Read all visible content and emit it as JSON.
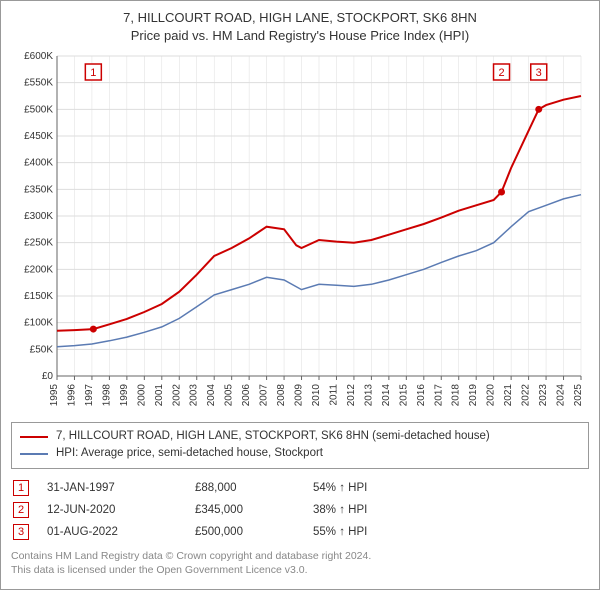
{
  "title_line1": "7, HILLCOURT ROAD, HIGH LANE, STOCKPORT, SK6 8HN",
  "title_line2": "Price paid vs. HM Land Registry's House Price Index (HPI)",
  "chart": {
    "type": "line",
    "background_color": "#ffffff",
    "grid_color": "#dddddd",
    "axis_color": "#666666",
    "xlim": [
      1995,
      2025
    ],
    "ylim": [
      0,
      600000
    ],
    "ytick_step": 50000,
    "ytick_labels": [
      "£0",
      "£50K",
      "£100K",
      "£150K",
      "£200K",
      "£250K",
      "£300K",
      "£350K",
      "£400K",
      "£450K",
      "£500K",
      "£550K",
      "£600K"
    ],
    "xticks": [
      1995,
      1996,
      1997,
      1998,
      1999,
      2000,
      2001,
      2002,
      2003,
      2004,
      2005,
      2006,
      2007,
      2008,
      2009,
      2010,
      2011,
      2012,
      2013,
      2014,
      2015,
      2016,
      2017,
      2018,
      2019,
      2020,
      2021,
      2022,
      2023,
      2024,
      2025
    ],
    "series_property": {
      "color": "#cc0000",
      "line_width": 2,
      "points": [
        [
          1995,
          85000
        ],
        [
          1996,
          86000
        ],
        [
          1997.08,
          88000
        ],
        [
          1998,
          97000
        ],
        [
          1999,
          107000
        ],
        [
          2000,
          120000
        ],
        [
          2001,
          135000
        ],
        [
          2002,
          158000
        ],
        [
          2003,
          190000
        ],
        [
          2004,
          225000
        ],
        [
          2005,
          240000
        ],
        [
          2006,
          258000
        ],
        [
          2007,
          280000
        ],
        [
          2008,
          275000
        ],
        [
          2008.7,
          245000
        ],
        [
          2009,
          240000
        ],
        [
          2010,
          255000
        ],
        [
          2011,
          252000
        ],
        [
          2012,
          250000
        ],
        [
          2013,
          255000
        ],
        [
          2014,
          265000
        ],
        [
          2015,
          275000
        ],
        [
          2016,
          285000
        ],
        [
          2017,
          297000
        ],
        [
          2018,
          310000
        ],
        [
          2019,
          320000
        ],
        [
          2020,
          330000
        ],
        [
          2020.45,
          345000
        ],
        [
          2021,
          390000
        ],
        [
          2022,
          460000
        ],
        [
          2022.58,
          500000
        ],
        [
          2023,
          508000
        ],
        [
          2024,
          518000
        ],
        [
          2025,
          525000
        ]
      ]
    },
    "series_hpi": {
      "color": "#5b7bb3",
      "line_width": 1.5,
      "points": [
        [
          1995,
          55000
        ],
        [
          1996,
          57000
        ],
        [
          1997,
          60000
        ],
        [
          1998,
          66000
        ],
        [
          1999,
          73000
        ],
        [
          2000,
          82000
        ],
        [
          2001,
          92000
        ],
        [
          2002,
          108000
        ],
        [
          2003,
          130000
        ],
        [
          2004,
          152000
        ],
        [
          2005,
          162000
        ],
        [
          2006,
          172000
        ],
        [
          2007,
          185000
        ],
        [
          2008,
          180000
        ],
        [
          2009,
          162000
        ],
        [
          2010,
          172000
        ],
        [
          2011,
          170000
        ],
        [
          2012,
          168000
        ],
        [
          2013,
          172000
        ],
        [
          2014,
          180000
        ],
        [
          2015,
          190000
        ],
        [
          2016,
          200000
        ],
        [
          2017,
          213000
        ],
        [
          2018,
          225000
        ],
        [
          2019,
          235000
        ],
        [
          2020,
          250000
        ],
        [
          2021,
          280000
        ],
        [
          2022,
          308000
        ],
        [
          2023,
          320000
        ],
        [
          2024,
          332000
        ],
        [
          2025,
          340000
        ]
      ]
    },
    "markers": [
      {
        "n": "1",
        "x": 1997.08,
        "y": 88000,
        "box_y": 570000
      },
      {
        "n": "2",
        "x": 2020.45,
        "y": 345000,
        "box_y": 570000
      },
      {
        "n": "3",
        "x": 2022.58,
        "y": 500000,
        "box_y": 570000
      }
    ]
  },
  "legend": {
    "series1_label": "7, HILLCOURT ROAD, HIGH LANE, STOCKPORT, SK6 8HN (semi-detached house)",
    "series2_label": "HPI: Average price, semi-detached house, Stockport"
  },
  "transactions": [
    {
      "n": "1",
      "date": "31-JAN-1997",
      "price": "£88,000",
      "diff": "54% ↑ HPI"
    },
    {
      "n": "2",
      "date": "12-JUN-2020",
      "price": "£345,000",
      "diff": "38% ↑ HPI"
    },
    {
      "n": "3",
      "date": "01-AUG-2022",
      "price": "£500,000",
      "diff": "55% ↑ HPI"
    }
  ],
  "footer": {
    "line1": "Contains HM Land Registry data © Crown copyright and database right 2024.",
    "line2": "This data is licensed under the Open Government Licence v3.0."
  },
  "colors": {
    "marker_border": "#cc0000",
    "marker_dot": "#cc0000"
  }
}
